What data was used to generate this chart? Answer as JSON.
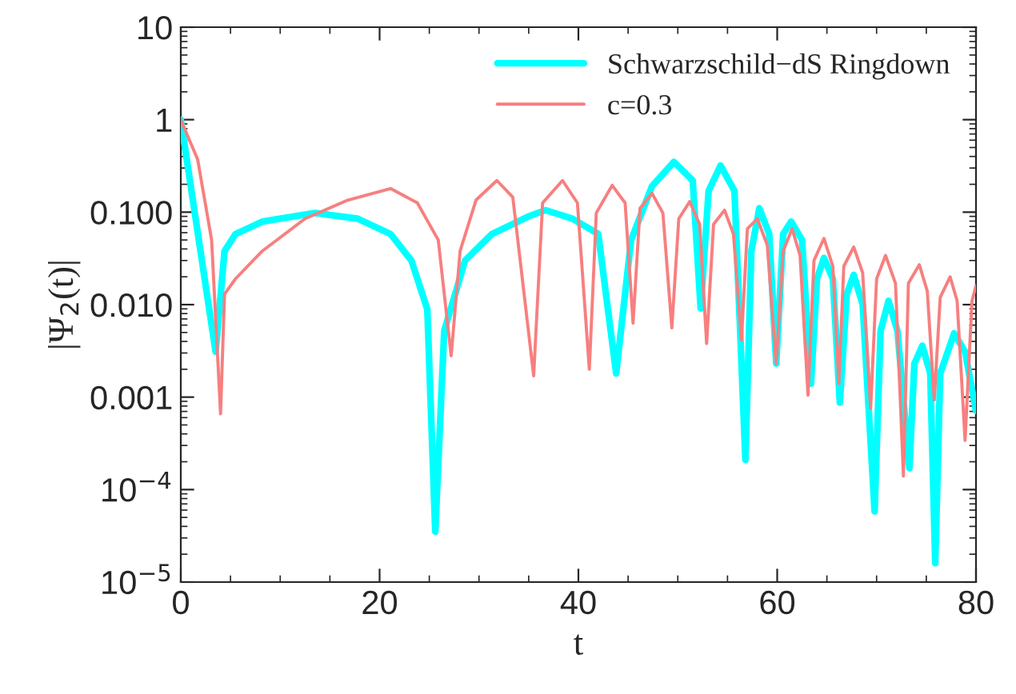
{
  "chart_data": {
    "type": "line",
    "xlabel": "t",
    "ylabel": "|Ψ$_{2}$(t)|",
    "log": "y",
    "grid": false,
    "legend": "top right",
    "line_style": "solid",
    "marker": "none",
    "xlim": [
      0,
      80
    ],
    "xticks": [
      0,
      20,
      40,
      60,
      80
    ],
    "ylim": [
      1e-05,
      10
    ],
    "yticks": [
      {
        "value": 10,
        "label": "10"
      },
      {
        "value": 1,
        "label": "1"
      },
      {
        "value": 0.1,
        "label": "0.100"
      },
      {
        "value": 0.01,
        "label": "0.010"
      },
      {
        "value": 0.001,
        "label": "0.001"
      },
      {
        "value": 0.0001,
        "label": "10$^{−4}$"
      },
      {
        "value": 1e-05,
        "label": "10$^{−5}$"
      }
    ],
    "series": [
      {
        "name": "Schwarzschild−dS Ringdown",
        "color": "#00ffff",
        "x": [
          0,
          3.5,
          4.4,
          5.5,
          8.2,
          13.5,
          17.8,
          21.1,
          23.2,
          24.8,
          25.6,
          26.5,
          28.6,
          31.3,
          35.1,
          36.7,
          39.4,
          42.0,
          43.8,
          45.3,
          47.4,
          49.6,
          51.5,
          52.3,
          53.1,
          54.3,
          55.7,
          56.8,
          57.4,
          58.2,
          59.2,
          59.9,
          60.6,
          61.4,
          62.5,
          63.4,
          64.0,
          64.7,
          65.6,
          66.3,
          67.0,
          67.7,
          68.6,
          69.8,
          70.4,
          71.2,
          72.1,
          73.3,
          73.8,
          74.6,
          75.4,
          75.9,
          76.4,
          77.8,
          78.9,
          80
        ],
        "values": [
          1,
          0.0031,
          0.038,
          0.058,
          0.079,
          0.098,
          0.085,
          0.058,
          0.03,
          0.0089,
          3.5e-05,
          0.0052,
          0.03,
          0.058,
          0.091,
          0.105,
          0.085,
          0.058,
          0.0018,
          0.05,
          0.19,
          0.35,
          0.22,
          0.0091,
          0.17,
          0.32,
          0.17,
          0.00021,
          0.038,
          0.11,
          0.058,
          0.0023,
          0.058,
          0.079,
          0.05,
          0.0014,
          0.019,
          0.032,
          0.019,
          0.00087,
          0.013,
          0.021,
          0.01,
          5.8e-05,
          0.0052,
          0.011,
          0.0052,
          0.00017,
          0.0023,
          0.0036,
          0.0018,
          1.6e-05,
          0.0018,
          0.0049,
          0.0031,
          0.00071
        ]
      },
      {
        "name": "c=0.3",
        "color": "#f77f7f",
        "x": [
          0,
          1.7,
          3.1,
          4.0,
          4.4,
          5.5,
          8.2,
          12.5,
          16.8,
          21.1,
          23.8,
          25.9,
          27.2,
          28.1,
          29.7,
          31.8,
          33.4,
          35.5,
          36.4,
          38.4,
          39.9,
          41.1,
          41.8,
          43.4,
          44.7,
          45.5,
          46.2,
          47.4,
          48.5,
          49.4,
          50.1,
          51.2,
          52.2,
          52.9,
          53.6,
          54.7,
          55.6,
          56.4,
          57.0,
          58.0,
          59.0,
          59.9,
          60.6,
          61.5,
          62.3,
          63.1,
          63.7,
          64.7,
          65.6,
          66.2,
          66.7,
          67.7,
          68.6,
          69.4,
          70.0,
          70.9,
          71.9,
          72.7,
          73.2,
          74.3,
          75.1,
          75.8,
          76.4,
          77.4,
          78.1,
          78.9,
          79.6,
          80
        ],
        "values": [
          1,
          0.37,
          0.05,
          0.00066,
          0.013,
          0.019,
          0.038,
          0.085,
          0.135,
          0.18,
          0.126,
          0.05,
          0.0028,
          0.038,
          0.135,
          0.22,
          0.145,
          0.0017,
          0.126,
          0.22,
          0.126,
          0.002,
          0.098,
          0.195,
          0.126,
          0.0063,
          0.11,
          0.16,
          0.098,
          0.0056,
          0.085,
          0.13,
          0.074,
          0.0038,
          0.074,
          0.105,
          0.058,
          0.0041,
          0.066,
          0.085,
          0.044,
          0.0023,
          0.038,
          0.066,
          0.034,
          0.00105,
          0.03,
          0.052,
          0.026,
          0.0014,
          0.026,
          0.042,
          0.022,
          0.00076,
          0.019,
          0.034,
          0.017,
          0.00014,
          0.017,
          0.027,
          0.014,
          0.00093,
          0.012,
          0.02,
          0.011,
          0.00034,
          0.011,
          0.016
        ]
      }
    ]
  }
}
